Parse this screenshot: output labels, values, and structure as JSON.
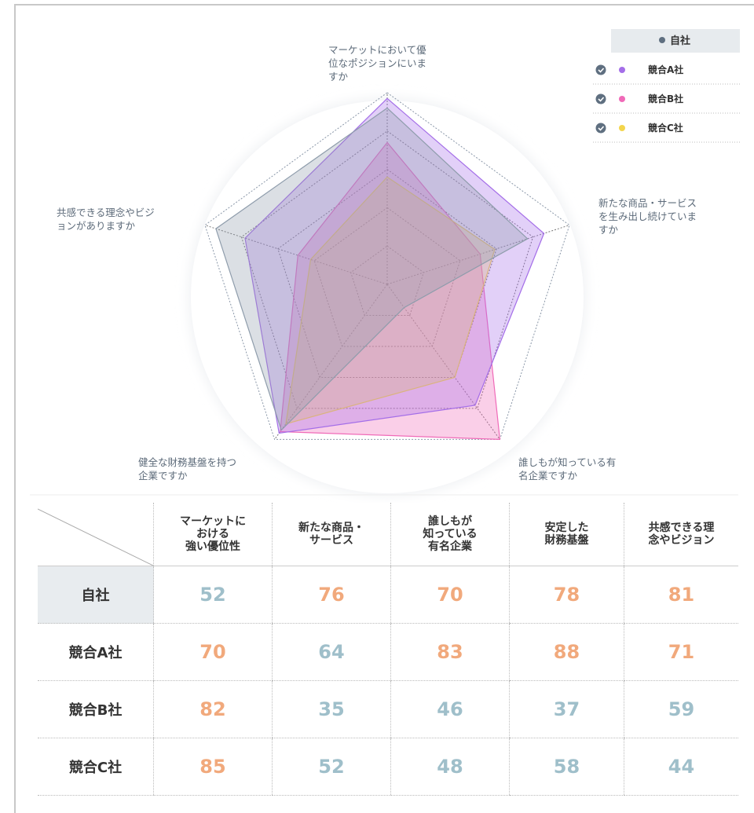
{
  "chart_data": {
    "type": "radar",
    "axes": [
      "マーケットにおいて優\n位なポジションにいま\nすか",
      "新たな商品・サービス\nを生み出し続けていま\nすか",
      "誰しもが知っている有\n名企業ですか",
      "健全な財務基盤を持つ\n企業ですか",
      "共感できる理念やビジ\nョンがありますか"
    ],
    "rlim": [
      0,
      100
    ],
    "rticks": [
      20,
      40,
      60,
      80,
      100
    ],
    "grid": true,
    "legend": "top-right",
    "series": [
      {
        "name": "自社",
        "color": "#8e9cab",
        "values": [
          92,
          77,
          15,
          94,
          94
        ]
      },
      {
        "name": "競合A社",
        "color": "#a46ee8",
        "values": [
          97,
          86,
          78,
          96,
          78
        ]
      },
      {
        "name": "競合B社",
        "color": "#f06ab8",
        "values": [
          74,
          51,
          100,
          95,
          49
        ]
      },
      {
        "name": "競合C社",
        "color": "#f3d54c",
        "values": [
          56,
          59,
          60,
          90,
          42
        ]
      }
    ]
  },
  "table": {
    "columns": [
      "マーケットに\nおける\n強い優位性",
      "新たな商品・\nサービス",
      "誰しもが\n知っている\n有名企業",
      "安定した\n財務基盤",
      "共感できる理\n念やビジョン"
    ],
    "rows": [
      {
        "label": "自社",
        "cells": [
          "52",
          "76",
          "70",
          "78",
          "81"
        ],
        "colors": [
          "#9fbfca",
          "#f1a97c",
          "#f1a97c",
          "#f1a97c",
          "#f1a97c"
        ]
      },
      {
        "label": "競合A社",
        "cells": [
          "70",
          "64",
          "83",
          "88",
          "71"
        ],
        "colors": [
          "#f1a97c",
          "#9fbfca",
          "#f1a97c",
          "#f1a97c",
          "#f1a97c"
        ]
      },
      {
        "label": "競合B社",
        "cells": [
          "82",
          "35",
          "46",
          "37",
          "59"
        ],
        "colors": [
          "#f1a97c",
          "#9fbfca",
          "#9fbfca",
          "#9fbfca",
          "#9fbfca"
        ]
      },
      {
        "label": "競合C社",
        "cells": [
          "85",
          "52",
          "48",
          "58",
          "44"
        ],
        "colors": [
          "#f1a97c",
          "#9fbfca",
          "#9fbfca",
          "#9fbfca",
          "#9fbfca"
        ]
      }
    ]
  }
}
